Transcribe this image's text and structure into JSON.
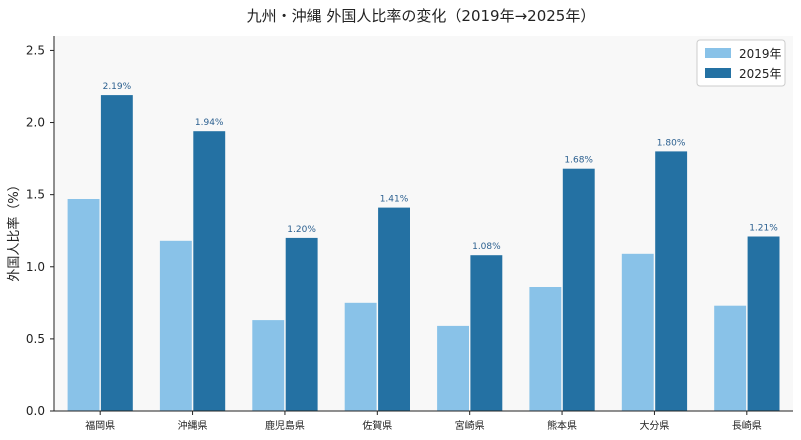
{
  "chart_data": {
    "type": "bar",
    "title": "九州・沖縄 外国人比率の変化（2019年→2025年）",
    "xlabel": "",
    "ylabel": "外国人比率（%）",
    "categories": [
      "福岡県",
      "沖縄県",
      "鹿児島県",
      "佐賀県",
      "宮崎県",
      "熊本県",
      "大分県",
      "長崎県"
    ],
    "series": [
      {
        "name": "2019年",
        "color": "#89c2e8",
        "values": [
          1.47,
          1.18,
          0.63,
          0.75,
          0.59,
          0.86,
          1.09,
          0.73
        ],
        "data_labels": [
          "",
          "",
          "",
          "",
          "",
          "",
          "",
          ""
        ]
      },
      {
        "name": "2025年",
        "color": "#2471a3",
        "values": [
          2.19,
          1.94,
          1.2,
          1.41,
          1.08,
          1.68,
          1.8,
          1.21
        ],
        "data_labels": [
          "2.19%",
          "1.94%",
          "1.20%",
          "1.41%",
          "1.08%",
          "1.68%",
          "1.80%",
          "1.21%"
        ]
      }
    ],
    "ylim": [
      0,
      2.6
    ],
    "yticks": [
      "0.0",
      "0.5",
      "1.0",
      "1.5",
      "2.0",
      "2.5"
    ],
    "ytick_values": [
      0,
      0.5,
      1.0,
      1.5,
      2.0,
      2.5
    ],
    "grid": false,
    "legend_position": "top-right",
    "plot_background": "#f8f8f8"
  }
}
